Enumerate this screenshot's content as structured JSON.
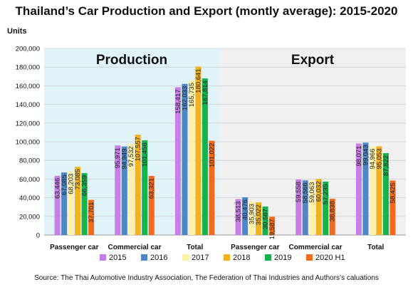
{
  "chart_data": {
    "type": "bar",
    "title": "Thailand’s Car Production and Export (montly average): 2015-2020",
    "ylabel": "Units",
    "ylim": [
      0,
      200000
    ],
    "yticks": [
      "0",
      "20,000",
      "40,000",
      "60,000",
      "80,000",
      "100,000",
      "120,000",
      "140,000",
      "160,000",
      "180,000",
      "200,000"
    ],
    "panels": [
      "Production",
      "Export"
    ],
    "panel_colors": [
      "#dff3f9",
      "#f0f0f0"
    ],
    "categories": [
      "Passenger car",
      "Commercial car",
      "Total",
      "Passenger car",
      "Commercial car",
      "Total"
    ],
    "series": [
      {
        "name": "2015",
        "color": "#c77ee6",
        "values": [
          63446,
          95971,
          158417,
          38513,
          59558,
          98071
        ],
        "labels": [
          "63,446",
          "95,971",
          "158,417",
          "38,513",
          "59,558",
          "98,071"
        ]
      },
      {
        "name": "2016",
        "color": "#4f86c6",
        "values": [
          67085,
          94949,
          162033,
          40476,
          58566,
          99043
        ],
        "labels": [
          "67,085",
          "94,949",
          "162,033",
          "40,476",
          "58,566",
          "99,043"
        ]
      },
      {
        "name": "2017",
        "color": "#fff2a8",
        "values": [
          68203,
          97532,
          165735,
          35903,
          59063,
          94966
        ],
        "labels": [
          "68,203",
          "97,532",
          "165,735",
          "35,903",
          "59,063",
          "94,966"
        ]
      },
      {
        "name": "2018",
        "color": "#f2b21c",
        "values": [
          73085,
          107557,
          180641,
          35022,
          60032,
          95053
        ],
        "labels": [
          "73,085",
          "107,557",
          "180,641",
          "35,022",
          "60,032",
          "95,053"
        ]
      },
      {
        "name": "2019",
        "color": "#16b24b",
        "values": [
          66359,
          101456,
          167814,
          30587,
          57235,
          87822
        ],
        "labels": [
          "66,359",
          "101,456",
          "167,814",
          "30,587",
          "57,235",
          "87,822"
        ]
      },
      {
        "name": "2020 H1",
        "color": "#f26b1d",
        "values": [
          37701,
          63321,
          101022,
          19587,
          38838,
          58425
        ],
        "labels": [
          "37,701",
          "63,321",
          "101,022",
          "19,587",
          "38,838",
          "58,425"
        ]
      }
    ],
    "legend_position": "bottom"
  },
  "source": "Source: The Thai Automotive Industry Association, The Federation of Thai Industries and Authors’s caluations"
}
